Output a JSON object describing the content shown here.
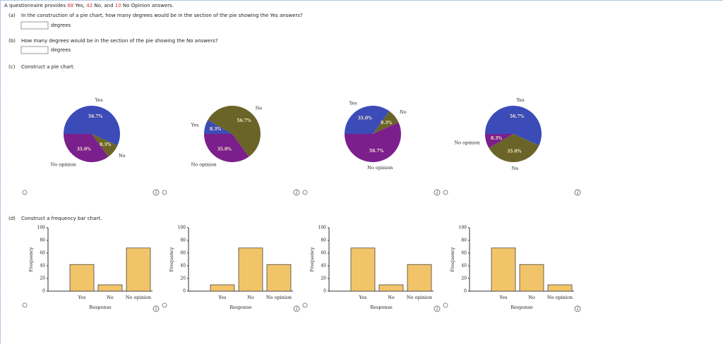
{
  "intro": [
    {
      "text": "A questionnaire provides "
    },
    {
      "text": "68",
      "highlight": true
    },
    {
      "text": " Yes, "
    },
    {
      "text": "42",
      "highlight": true
    },
    {
      "text": " No, and "
    },
    {
      "text": "10",
      "highlight": true
    },
    {
      "text": " No Opinion answers."
    }
  ],
  "questions": [
    {
      "label": "(a)",
      "text": "In the construction of a pie chart, how many degrees would be in the section of the pie showing the Yes answers?",
      "unit": "degrees"
    },
    {
      "label": "(b)",
      "text": "How many degrees would be in the section of the pie showing the No answers?",
      "unit": "degrees"
    },
    {
      "label": "(c)",
      "text": "Construct a pie chart."
    },
    {
      "label": "(d)",
      "text": "Construct a frequency bar chart."
    }
  ],
  "chart_data": [
    {
      "type": "pie",
      "categories": [
        "Yes",
        "No",
        "No opinion"
      ],
      "values": [
        56.7,
        8.3,
        35.0
      ],
      "value_labels": [
        "56.7%",
        "8.3%",
        "35.0%"
      ],
      "colors": [
        "#3b4cb8",
        "#6b6428",
        "#7b1f8c"
      ]
    },
    {
      "type": "pie",
      "categories": [
        "Yes",
        "No",
        "No opinion"
      ],
      "values": [
        8.3,
        56.7,
        35.0
      ],
      "value_labels": [
        "8.3%",
        "56.7%",
        "35.0%"
      ],
      "colors": [
        "#3b4cb8",
        "#6b6428",
        "#7b1f8c"
      ]
    },
    {
      "type": "pie",
      "categories": [
        "Yes",
        "No",
        "No opinion"
      ],
      "values": [
        35.0,
        8.3,
        56.7
      ],
      "value_labels": [
        "35.0%",
        "8.3%",
        "56.7%"
      ],
      "colors": [
        "#3b4cb8",
        "#6b6428",
        "#7b1f8c"
      ]
    },
    {
      "type": "pie",
      "categories": [
        "Yes",
        "No",
        "No opinion"
      ],
      "values": [
        56.7,
        35.0,
        8.3
      ],
      "value_labels": [
        "56.7%",
        "35.0%",
        "8.3%"
      ],
      "colors": [
        "#3b4cb8",
        "#6b6428",
        "#7b1f8c"
      ]
    },
    {
      "type": "bar",
      "categories": [
        "Yes",
        "No",
        "No opinion"
      ],
      "values": [
        42,
        10,
        68
      ],
      "color": "#f2c46a",
      "ylim": [
        0,
        100
      ],
      "yticks": [
        0,
        20,
        40,
        60,
        80,
        100
      ],
      "xlabel": "Response",
      "ylabel": "Frequency"
    },
    {
      "type": "bar",
      "categories": [
        "Yes",
        "No",
        "No opinion"
      ],
      "values": [
        10,
        68,
        42
      ],
      "color": "#f2c46a",
      "ylim": [
        0,
        100
      ],
      "yticks": [
        0,
        20,
        40,
        60,
        80,
        100
      ],
      "xlabel": "Response",
      "ylabel": "Frequency"
    },
    {
      "type": "bar",
      "categories": [
        "Yes",
        "No",
        "No opinion"
      ],
      "values": [
        68,
        10,
        42
      ],
      "color": "#f2c46a",
      "ylim": [
        0,
        100
      ],
      "yticks": [
        0,
        20,
        40,
        60,
        80,
        100
      ],
      "xlabel": "Response",
      "ylabel": "Frequency"
    },
    {
      "type": "bar",
      "categories": [
        "Yes",
        "No",
        "No opinion"
      ],
      "values": [
        68,
        42,
        10
      ],
      "color": "#f2c46a",
      "ylim": [
        0,
        100
      ],
      "yticks": [
        0,
        20,
        40,
        60,
        80,
        100
      ],
      "xlabel": "Response",
      "ylabel": "Frequency"
    }
  ]
}
